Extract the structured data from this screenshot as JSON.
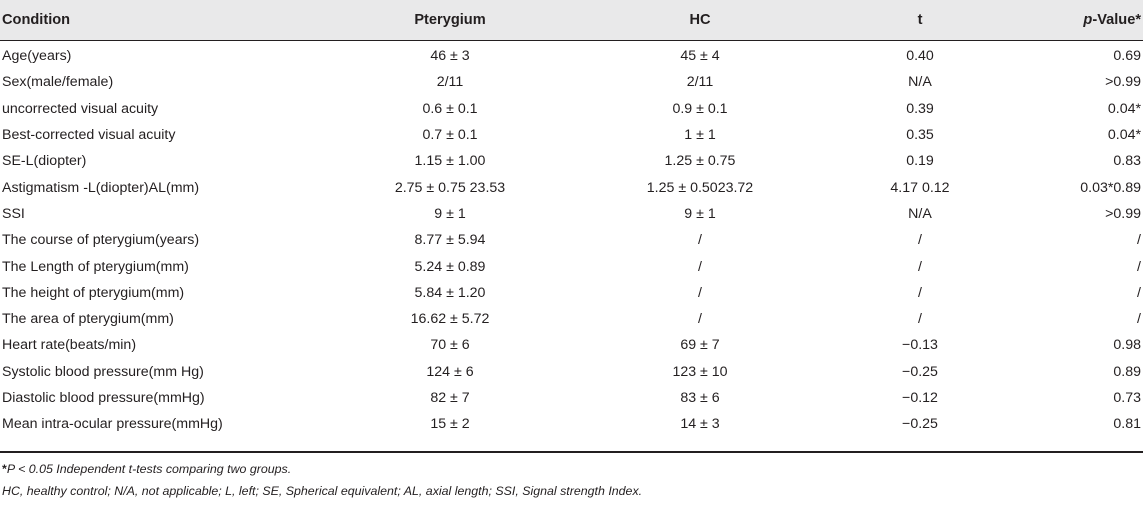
{
  "header": {
    "condition": "Condition",
    "pterygium": "Pterygium",
    "hc": "HC",
    "t": "t",
    "pvalue_italic": "p",
    "pvalue_rest": "-Value*"
  },
  "rows": [
    {
      "condition": "Age(years)",
      "pterygium": "46 ± 3",
      "hc": "45 ± 4",
      "t": "0.40",
      "p": "0.69"
    },
    {
      "condition": "Sex(male/female)",
      "pterygium": "2/11",
      "hc": "2/11",
      "t": "N/A",
      "p": ">0.99"
    },
    {
      "condition": "uncorrected visual acuity",
      "pterygium": "0.6 ± 0.1",
      "hc": "0.9 ± 0.1",
      "t": "0.39",
      "p": "0.04*"
    },
    {
      "condition": "Best-corrected visual acuity",
      "pterygium": "0.7 ± 0.1",
      "hc": "1 ± 1",
      "t": "0.35",
      "p": "0.04*"
    },
    {
      "condition": "SE-L(diopter)",
      "pterygium": "1.15 ± 1.00",
      "hc": "1.25 ± 0.75",
      "t": "0.19",
      "p": "0.83"
    },
    {
      "condition": "Astigmatism -L(diopter)AL(mm)",
      "pterygium": "2.75 ± 0.75 23.53",
      "hc": "1.25 ± 0.5023.72",
      "t": "4.17 0.12",
      "p": "0.03*0.89"
    },
    {
      "condition": "SSI",
      "pterygium": "9 ± 1",
      "hc": "9 ± 1",
      "t": "N/A",
      "p": ">0.99"
    },
    {
      "condition": "The course of pterygium(years)",
      "pterygium": "8.77 ± 5.94",
      "hc": "/",
      "t": "/",
      "p": "/"
    },
    {
      "condition": "The Length of pterygium(mm)",
      "pterygium": "5.24 ± 0.89",
      "hc": "/",
      "t": "/",
      "p": "/"
    },
    {
      "condition": "The height of pterygium(mm)",
      "pterygium": "5.84 ± 1.20",
      "hc": "/",
      "t": "/",
      "p": "/"
    },
    {
      "condition": "The area of pterygium(mm)",
      "pterygium": "16.62 ± 5.72",
      "hc": "/",
      "t": "/",
      "p": "/"
    },
    {
      "condition": "Heart rate(beats/min)",
      "pterygium": "70 ± 6",
      "hc": "69 ± 7",
      "t": "−0.13",
      "p": "0.98"
    },
    {
      "condition": "Systolic blood pressure(mm Hg)",
      "pterygium": "124 ± 6",
      "hc": "123 ± 10",
      "t": "−0.25",
      "p": "0.89"
    },
    {
      "condition": "Diastolic blood pressure(mmHg)",
      "pterygium": "82 ± 7",
      "hc": "83 ± 6",
      "t": "−0.12",
      "p": "0.73"
    },
    {
      "condition": "Mean intra-ocular pressure(mmHg)",
      "pterygium": "15 ± 2",
      "hc": "14 ± 3",
      "t": "−0.25",
      "p": "0.81"
    }
  ],
  "footnotes": {
    "line1_star": "*",
    "line1_text": "P < 0.05 Independent t-tests comparing two groups.",
    "line2": "HC, healthy control; N/A, not applicable; L, left; SE, Spherical equivalent; AL, axial length; SSI, Signal strength Index."
  }
}
